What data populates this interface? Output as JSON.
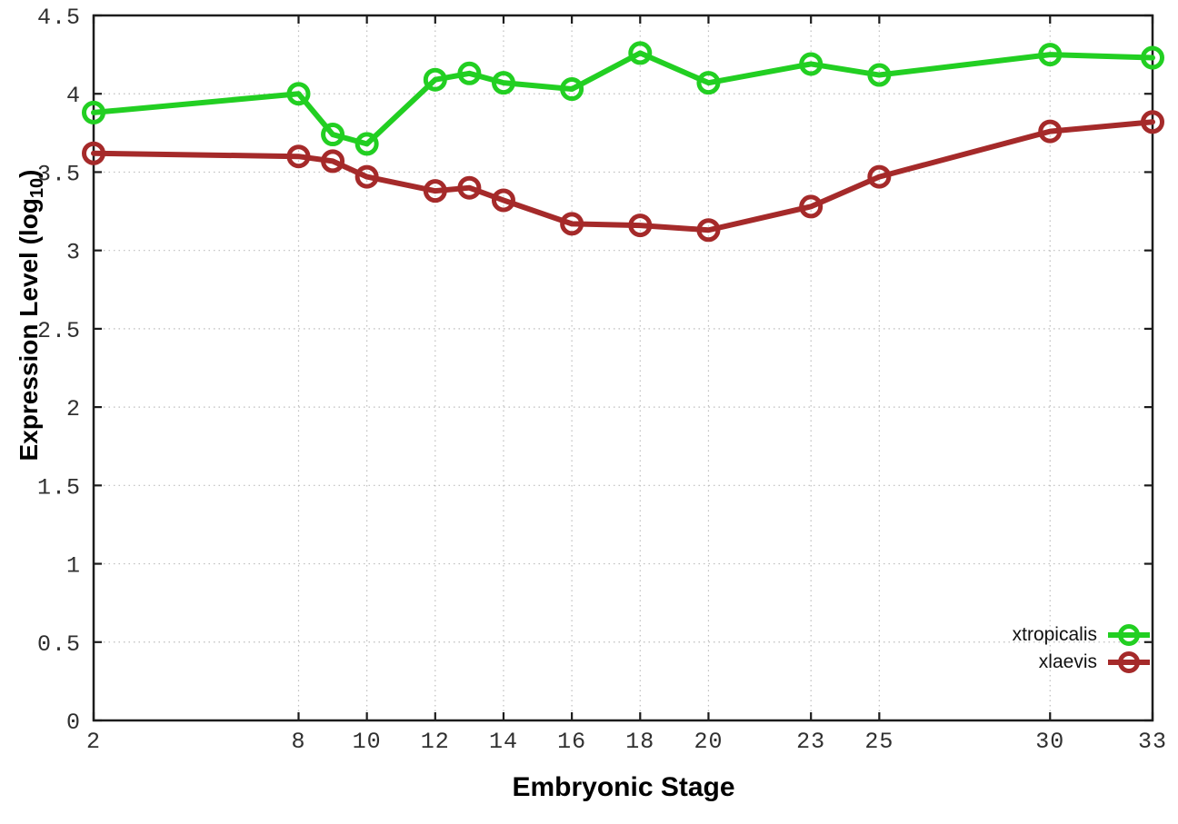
{
  "figure": {
    "background": "#ffffff",
    "axis_color": "#1c1c1c",
    "grid_color": "#bdbdbd",
    "tick_label_color": "#303030"
  },
  "chart_data": {
    "type": "line",
    "title": "",
    "xlabel": "Embryonic Stage",
    "ylabel": {
      "prefix": "Expression Level (log",
      "sub": "10",
      "suffix": ")"
    },
    "x": [
      2,
      8,
      9,
      10,
      12,
      13,
      14,
      16,
      18,
      20,
      23,
      25,
      30,
      33
    ],
    "xticks": [
      2,
      8,
      10,
      12,
      14,
      16,
      18,
      20,
      23,
      25,
      30,
      33
    ],
    "yticks": [
      0,
      0.5,
      1,
      1.5,
      2,
      2.5,
      3,
      3.5,
      4,
      4.5
    ],
    "xlim": [
      2,
      33
    ],
    "ylim": [
      0,
      4.5
    ],
    "grid": true,
    "legend_position": "inside-bottom-right",
    "marker": "open-circle",
    "series": [
      {
        "name": "xtropicalis",
        "color": "#22cf22",
        "values": [
          3.88,
          4.0,
          3.74,
          3.68,
          4.09,
          4.13,
          4.07,
          4.03,
          4.26,
          4.07,
          4.19,
          4.12,
          4.25,
          4.23
        ]
      },
      {
        "name": "xlaevis",
        "color": "#a52a2a",
        "values": [
          3.62,
          3.6,
          3.57,
          3.47,
          3.38,
          3.4,
          3.32,
          3.17,
          3.16,
          3.13,
          3.28,
          3.47,
          3.76,
          3.82
        ]
      }
    ]
  }
}
